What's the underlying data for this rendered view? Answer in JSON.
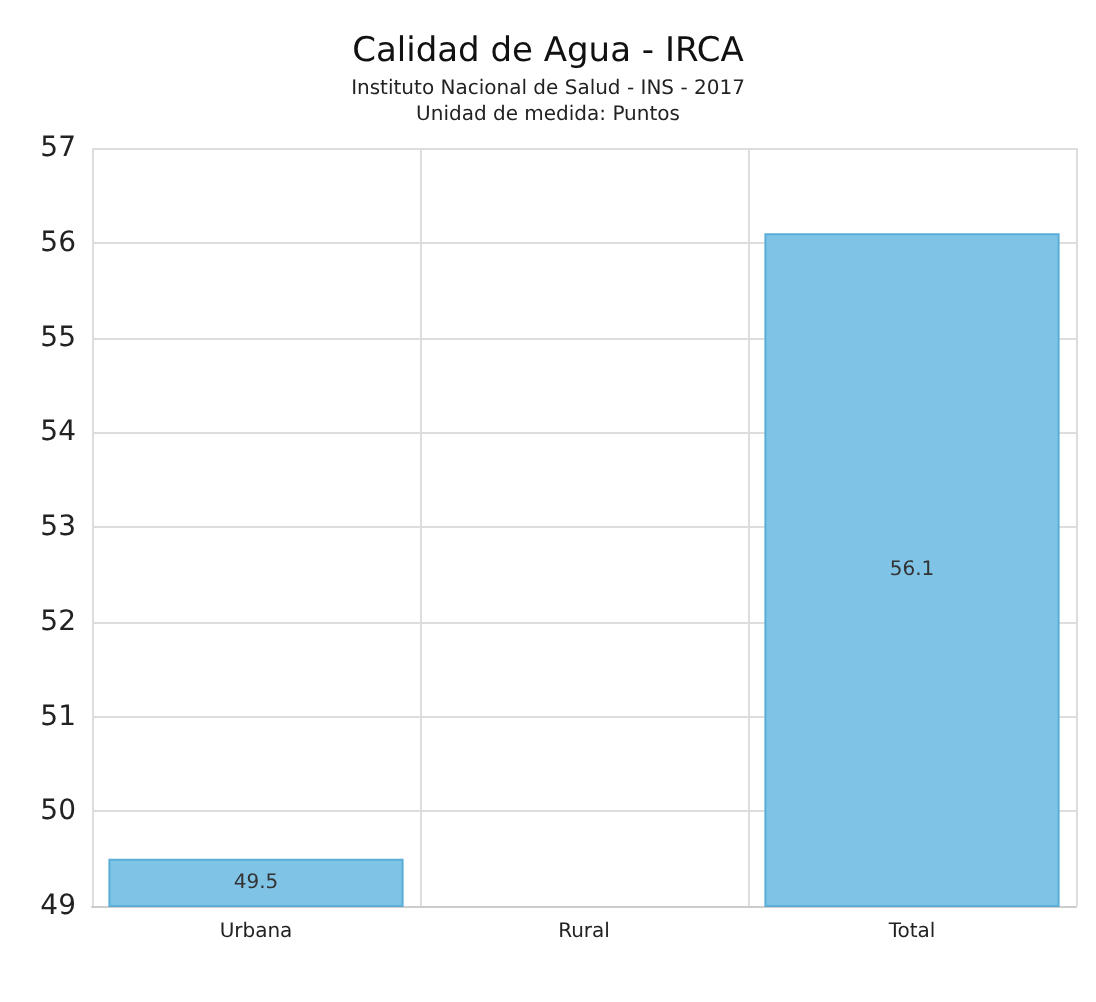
{
  "chart_data": {
    "type": "bar",
    "title": "Calidad de Agua - IRCA",
    "subtitle": "Instituto Nacional de Salud - INS - 2017\nUnidad de medida: Puntos",
    "categories": [
      "Urbana",
      "Rural",
      "Total"
    ],
    "values": [
      49.5,
      null,
      56.1
    ],
    "color": "#7fc3e6",
    "ylim": [
      49,
      57
    ],
    "yticks": [
      49,
      50,
      51,
      52,
      53,
      54,
      55,
      56,
      57
    ],
    "grid": true,
    "data_labels": true
  }
}
